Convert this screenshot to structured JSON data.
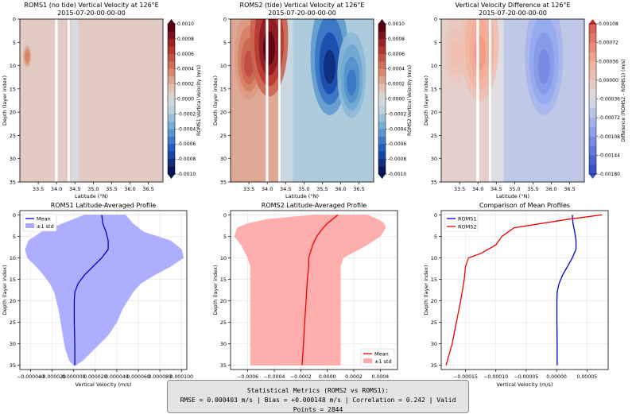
{
  "colors": {
    "blue_line": "#0000cc",
    "red_line": "#ee0000",
    "blue_fill": "#aaaaff",
    "red_fill": "#ffaaaa",
    "bg_gray": "#d5d8dc"
  },
  "chart_data": [
    {
      "id": "roms1_section",
      "type": "heatmap",
      "title": "ROMS1 (no tide) Vertical Velocity at 126°E",
      "subtitle": "2015-07-20-00-00-00",
      "xlabel": "Latitude (°N)",
      "ylabel": "Depth (layer index)",
      "xlim": [
        33.0,
        36.9
      ],
      "ylim": [
        35,
        0
      ],
      "xticks": [
        "33.5",
        "34.0",
        "34.5",
        "35.0",
        "35.5",
        "36.0",
        "36.5"
      ],
      "yticks": [
        "0",
        "5",
        "10",
        "15",
        "20",
        "25",
        "30",
        "35"
      ],
      "colorbar": {
        "label": "ROMS1 Vertical Velocity (m/s)",
        "ticks": [
          "0.0010",
          "0.0008",
          "0.0006",
          "0.0004",
          "0.0002",
          "0.0000",
          "-0.0002",
          "-0.0004",
          "-0.0006",
          "-0.0008",
          "-0.0010"
        ]
      },
      "bands": [
        {
          "lat": [
            33.0,
            34.4
          ],
          "value": 0.0001
        },
        {
          "lat": [
            34.4,
            34.6
          ],
          "value": 0.0
        },
        {
          "lat": [
            34.6,
            36.9
          ],
          "value": 0.0001
        }
      ],
      "blobs": [
        {
          "lat": 33.2,
          "depth": 8,
          "value": 0.0004
        }
      ],
      "gaps": [
        {
          "lat": [
            33.96,
            34.03
          ]
        },
        {
          "lat": [
            34.3,
            34.36
          ]
        }
      ]
    },
    {
      "id": "roms2_section",
      "type": "heatmap",
      "title": "ROMS2 (tide) Vertical Velocity at 126°E",
      "subtitle": "2015-07-20-00-00-00",
      "xlabel": "Latitude (°N)",
      "ylabel": "Depth (layer index)",
      "xlim": [
        33.0,
        36.9
      ],
      "ylim": [
        35,
        0
      ],
      "xticks": [
        "33.5",
        "34.0",
        "34.5",
        "35.0",
        "35.5",
        "36.0",
        "36.5"
      ],
      "yticks": [
        "0",
        "5",
        "10",
        "15",
        "20",
        "25",
        "30",
        "35"
      ],
      "colorbar": {
        "label": "ROMS2 Vertical Velocity (m/s)",
        "ticks": [
          "0.0010",
          "0.0008",
          "0.0006",
          "0.0004",
          "0.0002",
          "0.0000",
          "-0.0002",
          "-0.0004",
          "-0.0006",
          "-0.0008",
          "-0.0010"
        ]
      },
      "bands": [
        {
          "lat": [
            33.0,
            34.3
          ],
          "value": 0.00025
        },
        {
          "lat": [
            34.3,
            34.7
          ],
          "value": -0.0001
        },
        {
          "lat": [
            34.7,
            36.9
          ],
          "value": -0.0002
        }
      ],
      "blobs": [
        {
          "lat": 33.5,
          "depth": 8,
          "value": 0.0006
        },
        {
          "lat": 34.05,
          "depth": 4,
          "value": 0.001
        },
        {
          "lat": 35.7,
          "depth": 8,
          "value": -0.0009
        },
        {
          "lat": 36.3,
          "depth": 12,
          "value": -0.0006
        }
      ],
      "gaps": [
        {
          "lat": [
            33.96,
            34.03
          ]
        },
        {
          "lat": [
            34.3,
            34.36
          ]
        }
      ]
    },
    {
      "id": "difference_section",
      "type": "heatmap",
      "title": "Vertical Velocity Difference at 126°E",
      "subtitle": "2015-07-20-00-00-00",
      "xlabel": "Latitude (°N)",
      "ylabel": "Depth (layer index)",
      "xlim": [
        33.0,
        36.9
      ],
      "ylim": [
        35,
        0
      ],
      "xticks": [
        "33.5",
        "34.0",
        "34.5",
        "35.0",
        "35.5",
        "36.0",
        "36.5"
      ],
      "yticks": [
        "0",
        "5",
        "10",
        "15",
        "20",
        "25",
        "30",
        "35"
      ],
      "colorbar": {
        "label": "Difference (ROMS2 - ROMS1) (m/s)",
        "ticks": [
          "0.00108",
          "0.00072",
          "0.00036",
          "0.00000",
          "-0.00036",
          "-0.00072",
          "-0.00108",
          "-0.00144",
          "-0.00180"
        ]
      },
      "bands": [
        {
          "lat": [
            33.0,
            34.3
          ],
          "value": 0.0002
        },
        {
          "lat": [
            34.3,
            34.7
          ],
          "value": 0.0
        },
        {
          "lat": [
            34.7,
            36.9
          ],
          "value": -0.0003
        }
      ],
      "blobs": [
        {
          "lat": 33.4,
          "depth": 6,
          "value": 0.0005
        },
        {
          "lat": 34.05,
          "depth": 5,
          "value": 0.0009
        },
        {
          "lat": 35.8,
          "depth": 8,
          "value": -0.0011
        }
      ],
      "gaps": [
        {
          "lat": [
            33.96,
            34.03
          ]
        },
        {
          "lat": [
            34.3,
            34.36
          ]
        }
      ]
    },
    {
      "id": "roms1_profile",
      "type": "line",
      "title": "ROMS1 Latitude-Averaged Profile",
      "xlabel": "Vertical Velocity (m/s)",
      "ylabel": "Depth (layer index)",
      "xlim": [
        -5e-05,
        0.000105
      ],
      "ylim": [
        36,
        -1
      ],
      "xticks": [
        "−0.000040",
        "−0.000020",
        "0.000000",
        "0.000020",
        "0.000040",
        "0.000060",
        "0.000080",
        "0.000100"
      ],
      "yticks": [
        "0",
        "5",
        "10",
        "15",
        "20",
        "25",
        "30",
        "35"
      ],
      "legend": [
        "Mean",
        "±1 std"
      ],
      "legend_position": "upper left",
      "depth": [
        0,
        2,
        4,
        6,
        8,
        10,
        12,
        14,
        16,
        18,
        20,
        22,
        25,
        28,
        31,
        34,
        35
      ],
      "mean": [
        2.6e-05,
        2.7e-05,
        3e-05,
        3.2e-05,
        3.2e-05,
        2.6e-05,
        1.8e-05,
        1e-05,
        4e-06,
        1e-06,
        5e-07,
        5e-07,
        5e-07,
        8e-07,
        1e-06,
        1e-06,
        1e-06
      ],
      "lower": [
        1e-05,
        -1e-05,
        -3e-05,
        -4.2e-05,
        -4.5e-05,
        -4.3e-05,
        -3.5e-05,
        -2.8e-05,
        -2.2e-05,
        -1.8e-05,
        -1.6e-05,
        -1.4e-05,
        -1.2e-05,
        -1e-05,
        -8e-06,
        -4e-06,
        0.0
      ],
      "upper": [
        4.8e-05,
        5.5e-05,
        6.5e-05,
        9e-05,
        0.0001,
        0.000102,
        9e-05,
        7.5e-05,
        6.2e-05,
        5.5e-05,
        5e-05,
        4.5e-05,
        4e-05,
        3.2e-05,
        2e-05,
        8e-06,
        2e-06
      ]
    },
    {
      "id": "roms2_profile",
      "type": "line",
      "title": "ROMS2 Latitude-Averaged Profile",
      "xlabel": "Vertical Velocity (m/s)",
      "ylabel": "Depth (layer index)",
      "xlim": [
        -0.00073,
        0.00053
      ],
      "ylim": [
        36,
        -1
      ],
      "xticks": [
        "−0.0006",
        "−0.0004",
        "−0.0002",
        "0.0000",
        "0.0002",
        "0.0004"
      ],
      "yticks": [
        "0",
        "5",
        "10",
        "15",
        "20",
        "25",
        "30",
        "35"
      ],
      "legend": [
        "Mean",
        "±1 std"
      ],
      "legend_position": "lower right",
      "depth": [
        0,
        1,
        2,
        3,
        5,
        7,
        10,
        12,
        15,
        20,
        25,
        30,
        35
      ],
      "mean": [
        8e-05,
        4e-05,
        0.0,
        -3e-05,
        -8e-05,
        -0.00011,
        -0.00014,
        -0.00014,
        -0.00015,
        -0.00016,
        -0.00017,
        -0.00018,
        -0.00019
      ],
      "lower": [
        -0.0001,
        -0.00045,
        -0.0006,
        -0.00068,
        -0.0007,
        -0.00065,
        -0.0006,
        -0.00058,
        -0.00058,
        -0.00058,
        -0.00058,
        -0.00058,
        -0.00058
      ],
      "upper": [
        0.0003,
        0.00038,
        0.00043,
        0.00044,
        0.0004,
        0.0003,
        0.00012,
        0.0001,
        0.0001,
        0.0001,
        0.0001,
        0.0001,
        0.0001
      ]
    },
    {
      "id": "mean_comparison",
      "type": "line",
      "title": "Comparison of Mean Profiles",
      "xlabel": "Vertical Velocity (m/s)",
      "ylabel": "Depth (layer index)",
      "xlim": [
        -0.00019,
        8.5e-05
      ],
      "ylim": [
        36,
        -1
      ],
      "xticks": [
        "−0.00015",
        "−0.00010",
        "−0.00005",
        "0.00000",
        "0.00005"
      ],
      "yticks": [
        "0",
        "5",
        "10",
        "15",
        "20",
        "25",
        "30",
        "35"
      ],
      "legend_position": "upper left",
      "series": [
        {
          "name": "ROMS1",
          "color": "#0000cc",
          "depth": [
            0,
            2,
            4,
            6,
            8,
            10,
            12,
            14,
            16,
            18,
            20,
            22,
            25,
            28,
            31,
            34,
            35
          ],
          "values": [
            2.6e-05,
            2.7e-05,
            3e-05,
            3.2e-05,
            3.2e-05,
            2.6e-05,
            1.8e-05,
            1e-05,
            4e-06,
            1e-06,
            5e-07,
            5e-07,
            5e-07,
            8e-07,
            1e-06,
            1e-06,
            1e-06
          ]
        },
        {
          "name": "ROMS2",
          "color": "#ee0000",
          "depth": [
            0,
            1,
            3,
            5,
            7,
            9,
            10,
            12,
            15,
            20,
            25,
            30,
            35
          ],
          "values": [
            7.5e-05,
            2e-05,
            -7e-05,
            -9e-05,
            -0.0001,
            -0.000125,
            -0.000145,
            -0.00015,
            -0.000152,
            -0.000158,
            -0.000165,
            -0.000172,
            -0.000182
          ]
        }
      ]
    }
  ],
  "stats": {
    "line1": "Statistical Metrics (ROMS2 vs ROMS1):",
    "line2": "RMSE = 0.000403 m/s  |  Bias = +0.000148 m/s  |  Correlation = 0.242  |  Valid Points = 2844"
  }
}
